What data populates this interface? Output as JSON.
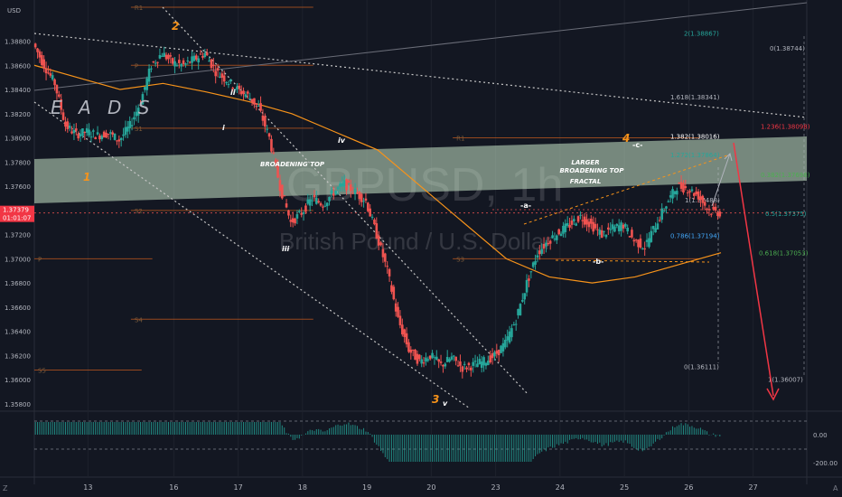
{
  "chart_data": {
    "type": "candlestick",
    "title": "GBPUSD, 1h",
    "subtitle": "British Pound / U.S. Dollar",
    "currency": "USD",
    "current_price": "1.37379",
    "countdown": "01:01:07",
    "ylim": [
      1.3574,
      1.3914
    ],
    "y_ticks": [
      "1.38800",
      "1.38600",
      "1.38400",
      "1.38200",
      "1.38000",
      "1.37800",
      "1.37600",
      "1.37400",
      "1.37200",
      "1.37000",
      "1.36800",
      "1.36600",
      "1.36400",
      "1.36200",
      "1.36000",
      "1.35800"
    ],
    "x_ticks": [
      "13",
      "16",
      "17",
      "18",
      "19",
      "20",
      "23",
      "24",
      "25",
      "26",
      "27"
    ],
    "x_tick_positions": [
      2.5,
      6.5,
      9.5,
      12.5,
      15.5,
      18.5,
      21.5,
      24.5,
      27.5,
      30.5,
      33.5
    ],
    "close_path": [
      [
        0,
        1.3878
      ],
      [
        0.5,
        1.386
      ],
      [
        1,
        1.3845
      ],
      [
        1.5,
        1.381
      ],
      [
        2,
        1.3803
      ],
      [
        2.5,
        1.3805
      ],
      [
        3,
        1.3802
      ],
      [
        3.5,
        1.3804
      ],
      [
        4,
        1.3798
      ],
      [
        4.5,
        1.381
      ],
      [
        5,
        1.383
      ],
      [
        5.5,
        1.386
      ],
      [
        6,
        1.387
      ],
      [
        6.5,
        1.3862
      ],
      [
        7,
        1.386
      ],
      [
        7.5,
        1.3865
      ],
      [
        8,
        1.387
      ],
      [
        8.5,
        1.3855
      ],
      [
        9,
        1.3848
      ],
      [
        9.5,
        1.384
      ],
      [
        10,
        1.3835
      ],
      [
        10.5,
        1.3825
      ],
      [
        11,
        1.38
      ],
      [
        11.5,
        1.376
      ],
      [
        12,
        1.373
      ],
      [
        12.5,
        1.3738
      ],
      [
        13,
        1.375
      ],
      [
        13.5,
        1.3745
      ],
      [
        14,
        1.3755
      ],
      [
        14.5,
        1.3762
      ],
      [
        15,
        1.3755
      ],
      [
        15.5,
        1.3748
      ],
      [
        16,
        1.372
      ],
      [
        16.5,
        1.369
      ],
      [
        17,
        1.365
      ],
      [
        17.5,
        1.3625
      ],
      [
        18,
        1.3615
      ],
      [
        18.5,
        1.362
      ],
      [
        19,
        1.3612
      ],
      [
        19.5,
        1.3618
      ],
      [
        20,
        1.361
      ],
      [
        20.5,
        1.3612
      ],
      [
        21,
        1.3615
      ],
      [
        21.5,
        1.362
      ],
      [
        22,
        1.363
      ],
      [
        22.5,
        1.365
      ],
      [
        23,
        1.368
      ],
      [
        23.5,
        1.3705
      ],
      [
        24,
        1.3715
      ],
      [
        24.5,
        1.3722
      ],
      [
        25,
        1.3728
      ],
      [
        25.5,
        1.3735
      ],
      [
        26,
        1.3728
      ],
      [
        26.5,
        1.372
      ],
      [
        27,
        1.3725
      ],
      [
        27.5,
        1.3728
      ],
      [
        28,
        1.3715
      ],
      [
        28.5,
        1.371
      ],
      [
        29,
        1.3728
      ],
      [
        29.5,
        1.3745
      ],
      [
        30,
        1.376
      ],
      [
        30.5,
        1.3758
      ],
      [
        31,
        1.3752
      ],
      [
        31.5,
        1.374
      ],
      [
        32,
        1.3738
      ]
    ],
    "fib_levels": [
      {
        "label": "2(1.38867)",
        "value": 1.38867,
        "color": "#26a69a"
      },
      {
        "label": "0(1.38744)",
        "value": 1.38744,
        "color": "#b2b5be"
      },
      {
        "label": "1.618(1.38341)",
        "value": 1.38341,
        "color": "#b2b5be"
      },
      {
        "label": "1.236(1.38098)",
        "value": 1.38098,
        "color": "#f23645"
      },
      {
        "label": "1.382(1.38016)",
        "value": 1.38016,
        "color": "#ffffff"
      },
      {
        "label": "1.272(1.37864)",
        "value": 1.37864,
        "color": "#26a69a"
      },
      {
        "label": "0.382(1.37698)",
        "value": 1.37698,
        "color": "#4caf50"
      },
      {
        "label": "1(1.37488)",
        "value": 1.37488,
        "color": "#b2b5be"
      },
      {
        "label": "0.5(1.37375)",
        "value": 1.37375,
        "color": "#26a69a"
      },
      {
        "label": "0.786(1.37194)",
        "value": 1.37194,
        "color": "#42a5f5"
      },
      {
        "label": "0.618(1.37053)",
        "value": 1.37053,
        "color": "#4caf50"
      },
      {
        "label": "0(1.36111)",
        "value": 1.36111,
        "color": "#b2b5be"
      },
      {
        "label": "1(1.36007)",
        "value": 1.36007,
        "color": "#b2b5be"
      }
    ],
    "pivot_levels": [
      {
        "label": "R1",
        "value": 1.3908
      },
      {
        "label": "P",
        "value": 1.386
      },
      {
        "label": "S1",
        "value": 1.3808
      },
      {
        "label": "R1",
        "value": 1.38
      },
      {
        "label": "S2",
        "value": 1.374
      },
      {
        "label": "S3",
        "value": 1.37
      },
      {
        "label": "P",
        "value": 1.37
      },
      {
        "label": "S4",
        "value": 1.365
      },
      {
        "label": "S5",
        "value": 1.3608
      }
    ],
    "annotations": [
      {
        "text": "2",
        "color": "#f7931a"
      },
      {
        "text": "1",
        "color": "#f7931a"
      },
      {
        "text": "3",
        "color": "#f7931a"
      },
      {
        "text": "4",
        "color": "#f7931a"
      },
      {
        "text": "ii",
        "color": "#ffffff"
      },
      {
        "text": "i",
        "color": "#ffffff"
      },
      {
        "text": "iv",
        "color": "#ffffff"
      },
      {
        "text": "iii",
        "color": "#ffffff"
      },
      {
        "text": "v",
        "color": "#ffffff"
      },
      {
        "text": "-a-",
        "color": "#ffffff"
      },
      {
        "text": "-b-",
        "color": "#ffffff"
      },
      {
        "text": "-c-",
        "color": "#ffffff"
      },
      {
        "text": "BROADENING TOP",
        "color": "#ffffff"
      },
      {
        "text": "LARGER",
        "color": "#ffffff"
      },
      {
        "text": "BROADENING TOP",
        "color": "#ffffff"
      },
      {
        "text": "FRACTAL",
        "color": "#ffffff"
      },
      {
        "text": "E A D S",
        "color": "#b2b5be"
      }
    ],
    "oscillator": {
      "ticks": [
        "0.00",
        "-200.00"
      ]
    },
    "colors": {
      "up": "#26a69a",
      "down": "#ef5350",
      "band": "#c8e6c9",
      "ma": "#f7931a"
    }
  },
  "footer": {
    "left_letter": "Z",
    "right_letter": "A"
  }
}
